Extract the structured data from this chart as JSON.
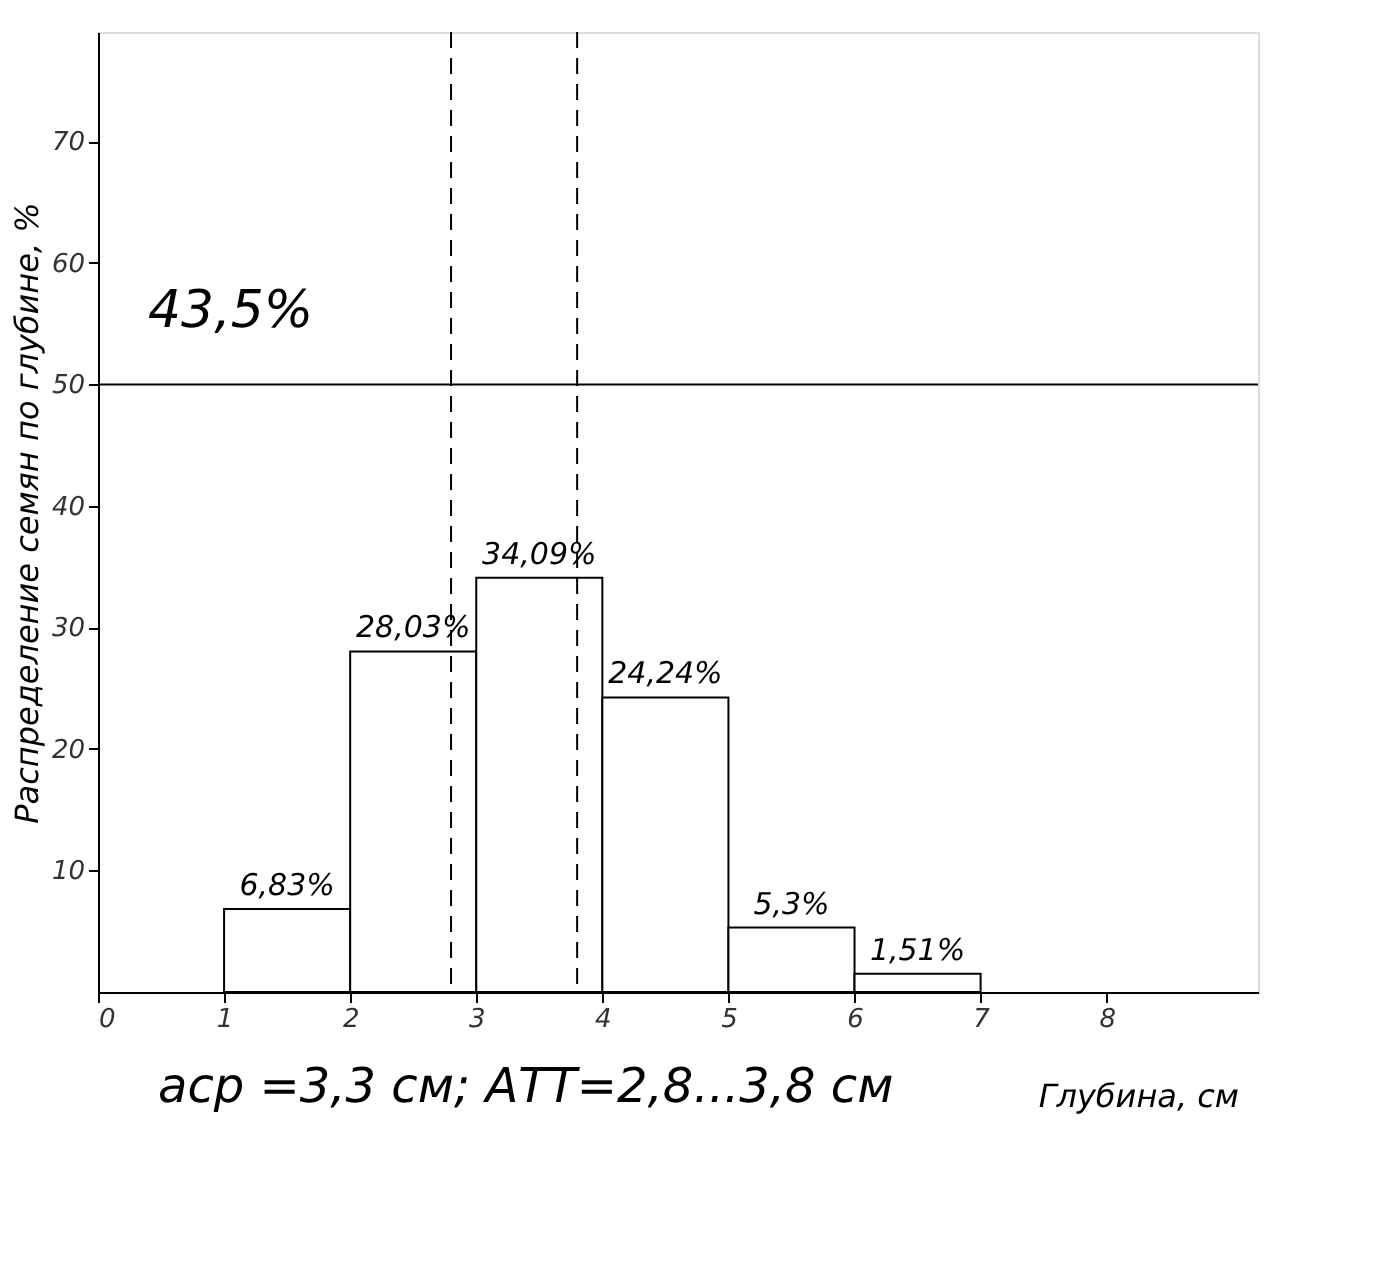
{
  "chart_data": {
    "type": "histogram",
    "xlabel": "Глубина, см",
    "ylabel": "Распределение семян по глубине, %",
    "bins": [
      1,
      2,
      3,
      4,
      5,
      6,
      7
    ],
    "values": [
      6.83,
      28.03,
      34.09,
      24.24,
      5.3,
      1.51
    ],
    "value_labels": [
      "6,83%",
      "28,03%",
      "34,09%",
      "24,24%",
      "5,3%",
      "1,51%"
    ],
    "color": "#ffffff",
    "xlim": [
      0,
      9.2
    ],
    "xticks": [
      0,
      1,
      2,
      3,
      4,
      5,
      6,
      7,
      8
    ],
    "ylim": [
      0,
      79
    ],
    "yticks": [
      10,
      20,
      30,
      40,
      50,
      60,
      70
    ],
    "grid": false,
    "ref_lines": [
      {
        "axis": "x",
        "value": 2.8,
        "label": null,
        "line_style": "dashed"
      },
      {
        "axis": "x",
        "value": 3.8,
        "label": null,
        "line_style": "dashed"
      },
      {
        "axis": "y",
        "value": 50,
        "label": null,
        "line_style": "solid"
      }
    ],
    "annotations": [
      "43,5%",
      "aср =3,3 см; АТТ=2,8...3,8 см"
    ]
  }
}
